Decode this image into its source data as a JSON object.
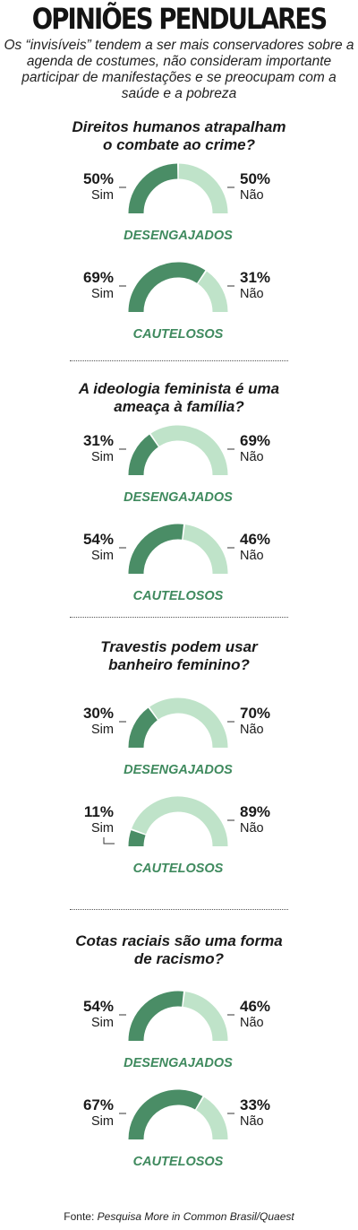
{
  "title": "OPINIÕES PENDULARES",
  "subtitle": "Os “invisíveis” tendem a ser mais conservadores sobre a agenda de costumes, não consideram importante participar de manifestações e se preocupam com a saúde e a pobreza",
  "colors": {
    "sim": "#4a8d66",
    "nao": "#bfe3c9",
    "group_label": "#3f8a5e"
  },
  "questions": [
    {
      "q1": "Direitos humanos atrapalham",
      "q2": "o combate ao crime?"
    },
    {
      "q1": "A ideologia feminista é uma",
      "q2": "ameaça à família?"
    },
    {
      "q1": "Travestis podem usar",
      "q2": "banheiro feminino?"
    },
    {
      "q1": "Cotas raciais são uma forma",
      "q2": "de racismo?"
    }
  ],
  "chart_data": {
    "type": "gauge",
    "categories": [
      "Sim",
      "Não"
    ],
    "panels": [
      {
        "question": "Direitos humanos atrapalham o combate ao crime?",
        "group": "DESENGAJADOS",
        "sim": 50,
        "nao": 50,
        "sim_label": "50%",
        "nao_label": "50%"
      },
      {
        "question": "Direitos humanos atrapalham o combate ao crime?",
        "group": "CAUTELOSOS",
        "sim": 69,
        "nao": 31,
        "sim_label": "69%",
        "nao_label": "31%"
      },
      {
        "question": "A ideologia feminista é uma ameaça à família?",
        "group": "DESENGAJADOS",
        "sim": 31,
        "nao": 69,
        "sim_label": "31%",
        "nao_label": "69%"
      },
      {
        "question": "A ideologia feminista é uma ameaça à família?",
        "group": "CAUTELOSOS",
        "sim": 54,
        "nao": 46,
        "sim_label": "54%",
        "nao_label": "46%"
      },
      {
        "question": "Travestis podem usar banheiro feminino?",
        "group": "DESENGAJADOS",
        "sim": 30,
        "nao": 70,
        "sim_label": "30%",
        "nao_label": "70%"
      },
      {
        "question": "Travestis podem usar banheiro feminino?",
        "group": "CAUTELOSOS",
        "sim": 11,
        "nao": 89,
        "sim_label": "11%",
        "nao_label": "89%"
      },
      {
        "question": "Cotas raciais são uma forma de racismo?",
        "group": "DESENGAJADOS",
        "sim": 54,
        "nao": 46,
        "sim_label": "54%",
        "nao_label": "46%"
      },
      {
        "question": "Cotas raciais são uma forma de racismo?",
        "group": "CAUTELOSOS",
        "sim": 67,
        "nao": 33,
        "sim_label": "67%",
        "nao_label": "33%"
      }
    ]
  },
  "footer": {
    "prefix": "Fonte:",
    "source": "Pesquisa More in Common Brasil/Quaest"
  }
}
